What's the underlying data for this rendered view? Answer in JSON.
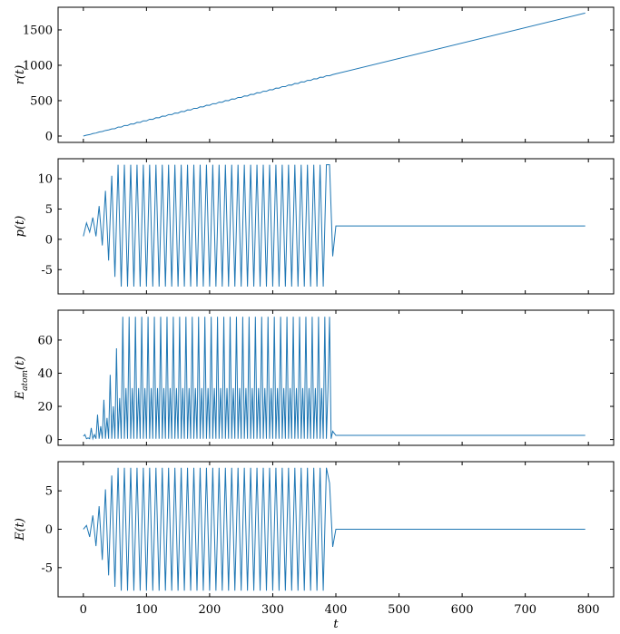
{
  "chart_data": [
    {
      "type": "line",
      "ylabel": "r(t)",
      "color": "#1f77b4",
      "x": [
        0,
        5,
        10,
        15,
        20,
        25,
        30,
        35,
        40,
        45,
        50,
        55,
        60,
        65,
        70,
        75,
        80,
        85,
        90,
        95,
        100,
        105,
        110,
        115,
        120,
        125,
        130,
        135,
        140,
        145,
        150,
        155,
        160,
        165,
        170,
        175,
        180,
        185,
        190,
        195,
        200,
        205,
        210,
        215,
        220,
        225,
        230,
        235,
        240,
        245,
        250,
        255,
        260,
        265,
        270,
        275,
        280,
        285,
        290,
        295,
        300,
        305,
        310,
        315,
        320,
        325,
        330,
        335,
        340,
        345,
        350,
        355,
        360,
        365,
        370,
        375,
        380,
        385,
        390,
        395,
        400,
        795
      ],
      "values": [
        0,
        13,
        20,
        35,
        42,
        57,
        64,
        79,
        86,
        101,
        104,
        127,
        126,
        149,
        148,
        171,
        170,
        193,
        192,
        215,
        214,
        237,
        236,
        259,
        258,
        281,
        280,
        303,
        302,
        325,
        324,
        347,
        346,
        369,
        368,
        391,
        390,
        413,
        412,
        435,
        434,
        457,
        456,
        479,
        478,
        501,
        500,
        523,
        522,
        545,
        544,
        567,
        566,
        589,
        588,
        611,
        610,
        633,
        632,
        655,
        654,
        677,
        676,
        699,
        698,
        721,
        720,
        743,
        742,
        765,
        764,
        787,
        786,
        809,
        808,
        831,
        830,
        853,
        852,
        868,
        879,
        1738
      ],
      "xlim": [
        -40,
        840
      ],
      "xticks": [
        0,
        100,
        200,
        300,
        400,
        500,
        600,
        700,
        800
      ],
      "ylim": [
        -90,
        1820
      ],
      "yticks": [
        0,
        500,
        1000,
        1500
      ]
    },
    {
      "type": "line",
      "ylabel": "p(t)",
      "color": "#1f77b4",
      "x": [
        0,
        5,
        10,
        15,
        20,
        25,
        30,
        35,
        40,
        45,
        50,
        55,
        60,
        65,
        70,
        75,
        80,
        85,
        90,
        95,
        100,
        105,
        110,
        115,
        120,
        125,
        130,
        135,
        140,
        145,
        150,
        155,
        160,
        165,
        170,
        175,
        180,
        185,
        190,
        195,
        200,
        205,
        210,
        215,
        220,
        225,
        230,
        235,
        240,
        245,
        250,
        255,
        260,
        265,
        270,
        275,
        280,
        285,
        290,
        295,
        300,
        305,
        310,
        315,
        320,
        325,
        330,
        335,
        340,
        345,
        350,
        355,
        360,
        365,
        370,
        375,
        380,
        385,
        390,
        395,
        400,
        795
      ],
      "values": [
        0.5,
        2.7,
        1.2,
        3.6,
        0.5,
        5.5,
        -1.0,
        8.0,
        -3.5,
        10.5,
        -6.2,
        12.3,
        -7.8,
        12.3,
        -7.8,
        12.3,
        -7.8,
        12.3,
        -7.8,
        12.3,
        -7.8,
        12.3,
        -7.8,
        12.3,
        -7.8,
        12.3,
        -7.8,
        12.3,
        -7.8,
        12.3,
        -7.8,
        12.3,
        -7.8,
        12.3,
        -7.8,
        12.3,
        -7.8,
        12.3,
        -7.8,
        12.3,
        -7.8,
        12.3,
        -7.8,
        12.3,
        -7.8,
        12.3,
        -7.8,
        12.3,
        -7.8,
        12.3,
        -7.8,
        12.3,
        -7.8,
        12.3,
        -7.8,
        12.3,
        -7.8,
        12.3,
        -7.8,
        12.3,
        -7.8,
        12.3,
        -7.8,
        12.3,
        -7.8,
        12.3,
        -7.8,
        12.3,
        -7.8,
        12.3,
        -7.8,
        12.3,
        -7.8,
        12.3,
        -7.8,
        12.3,
        -7.8,
        12.3,
        12.3,
        -2.8,
        2.2,
        2.2
      ],
      "xlim": [
        -40,
        840
      ],
      "xticks": [
        0,
        100,
        200,
        300,
        400,
        500,
        600,
        700,
        800
      ],
      "ylim": [
        -9,
        13.3
      ],
      "yticks": [
        -5,
        0,
        5,
        10
      ]
    },
    {
      "type": "line",
      "ylabel": "E",
      "ylabel_sub": "atom",
      "ylabel_end": "(t)",
      "color": "#1f77b4",
      "x": [
        0,
        2.5,
        5,
        7.5,
        10,
        12.5,
        15,
        17.5,
        20,
        22.5,
        25,
        27.5,
        30,
        32.5,
        35,
        37.5,
        40,
        42.5,
        45,
        47.5,
        50,
        52.5,
        55,
        57.5,
        60,
        62.5,
        65,
        67.5,
        70,
        72.5,
        75,
        77.5,
        80,
        82.5,
        85,
        87.5,
        90,
        92.5,
        95,
        97.5,
        100,
        102.5,
        105,
        107.5,
        110,
        112.5,
        115,
        117.5,
        120,
        122.5,
        125,
        127.5,
        130,
        132.5,
        135,
        137.5,
        140,
        142.5,
        145,
        147.5,
        150,
        152.5,
        155,
        157.5,
        160,
        162.5,
        165,
        167.5,
        170,
        172.5,
        175,
        177.5,
        180,
        182.5,
        185,
        187.5,
        190,
        192.5,
        195,
        197.5,
        200,
        202.5,
        205,
        207.5,
        210,
        212.5,
        215,
        217.5,
        220,
        222.5,
        225,
        227.5,
        230,
        232.5,
        235,
        237.5,
        240,
        242.5,
        245,
        247.5,
        250,
        252.5,
        255,
        257.5,
        260,
        262.5,
        265,
        267.5,
        270,
        272.5,
        275,
        277.5,
        280,
        282.5,
        285,
        287.5,
        290,
        292.5,
        295,
        297.5,
        300,
        302.5,
        305,
        307.5,
        310,
        312.5,
        315,
        317.5,
        320,
        322.5,
        325,
        327.5,
        330,
        332.5,
        335,
        337.5,
        340,
        342.5,
        345,
        347.5,
        350,
        352.5,
        355,
        357.5,
        360,
        362.5,
        365,
        367.5,
        370,
        372.5,
        375,
        377.5,
        380,
        382.5,
        385,
        387.5,
        390,
        392.5,
        395,
        400,
        795
      ],
      "values": [
        2,
        3,
        0.5,
        1,
        0.5,
        7,
        0.5,
        3,
        0.5,
        15,
        0.5,
        8,
        0.5,
        24,
        0.5,
        13,
        0.5,
        39,
        0.5,
        20,
        0.5,
        55,
        0.5,
        25,
        0.5,
        74,
        0.5,
        31,
        0.5,
        74,
        0.5,
        31,
        0.5,
        74,
        0.5,
        31,
        0.5,
        74,
        0.5,
        31,
        0.5,
        74,
        0.5,
        31,
        0.5,
        74,
        0.5,
        31,
        0.5,
        74,
        0.5,
        31,
        0.5,
        74,
        0.5,
        31,
        0.5,
        74,
        0.5,
        31,
        0.5,
        74,
        0.5,
        31,
        0.5,
        74,
        0.5,
        31,
        0.5,
        74,
        0.5,
        31,
        0.5,
        74,
        0.5,
        31,
        0.5,
        74,
        0.5,
        31,
        0.5,
        74,
        0.5,
        31,
        0.5,
        74,
        0.5,
        31,
        0.5,
        74,
        0.5,
        31,
        0.5,
        74,
        0.5,
        31,
        0.5,
        74,
        0.5,
        31,
        0.5,
        74,
        0.5,
        31,
        0.5,
        74,
        0.5,
        31,
        0.5,
        74,
        0.5,
        31,
        0.5,
        74,
        0.5,
        31,
        0.5,
        74,
        0.5,
        31,
        0.5,
        74,
        0.5,
        31,
        0.5,
        74,
        0.5,
        31,
        0.5,
        74,
        0.5,
        31,
        0.5,
        74,
        0.5,
        31,
        0.5,
        74,
        0.5,
        31,
        0.5,
        74,
        0.5,
        31,
        0.5,
        74,
        0.5,
        31,
        0.5,
        74,
        0.5,
        31,
        0.5,
        74,
        0.5,
        31,
        74,
        0.5,
        5,
        2.5,
        2.5
      ],
      "xlim": [
        -40,
        840
      ],
      "xticks": [
        0,
        100,
        200,
        300,
        400,
        500,
        600,
        700,
        800
      ],
      "ylim": [
        -3.5,
        78
      ],
      "yticks": [
        0,
        20,
        40,
        60
      ]
    },
    {
      "type": "line",
      "ylabel": "E(t)",
      "xlabel": "t",
      "color": "#1f77b4",
      "x": [
        0,
        5,
        10,
        15,
        20,
        25,
        30,
        35,
        40,
        45,
        50,
        55,
        60,
        65,
        70,
        75,
        80,
        85,
        90,
        95,
        100,
        105,
        110,
        115,
        120,
        125,
        130,
        135,
        140,
        145,
        150,
        155,
        160,
        165,
        170,
        175,
        180,
        185,
        190,
        195,
        200,
        205,
        210,
        215,
        220,
        225,
        230,
        235,
        240,
        245,
        250,
        255,
        260,
        265,
        270,
        275,
        280,
        285,
        290,
        295,
        300,
        305,
        310,
        315,
        320,
        325,
        330,
        335,
        340,
        345,
        350,
        355,
        360,
        365,
        370,
        375,
        380,
        385,
        390,
        395,
        400,
        795
      ],
      "values": [
        0,
        0.5,
        -1.0,
        1.8,
        -2.2,
        3.0,
        -4.0,
        5.2,
        -6.0,
        7.0,
        -7.5,
        8.0,
        -8.0,
        8.0,
        -8.0,
        8.0,
        -8.0,
        8.0,
        -8.0,
        8.0,
        -8.0,
        8.0,
        -8.0,
        8.0,
        -8.0,
        8.0,
        -8.0,
        8.0,
        -8.0,
        8.0,
        -8.0,
        8.0,
        -8.0,
        8.0,
        -8.0,
        8.0,
        -8.0,
        8.0,
        -8.0,
        8.0,
        -8.0,
        8.0,
        -8.0,
        8.0,
        -8.0,
        8.0,
        -8.0,
        8.0,
        -8.0,
        8.0,
        -8.0,
        8.0,
        -8.0,
        8.0,
        -8.0,
        8.0,
        -8.0,
        8.0,
        -8.0,
        8.0,
        -8.0,
        8.0,
        -8.0,
        8.0,
        -8.0,
        8.0,
        -8.0,
        8.0,
        -8.0,
        8.0,
        -8.0,
        8.0,
        -8.0,
        8.0,
        -8.0,
        8.0,
        -8.0,
        8.0,
        6.0,
        -2.3,
        0,
        0
      ],
      "xlim": [
        -40,
        840
      ],
      "xticks": [
        0,
        100,
        200,
        300,
        400,
        500,
        600,
        700,
        800
      ],
      "ylim": [
        -8.8,
        8.8
      ],
      "yticks": [
        -5,
        0,
        5
      ]
    }
  ]
}
